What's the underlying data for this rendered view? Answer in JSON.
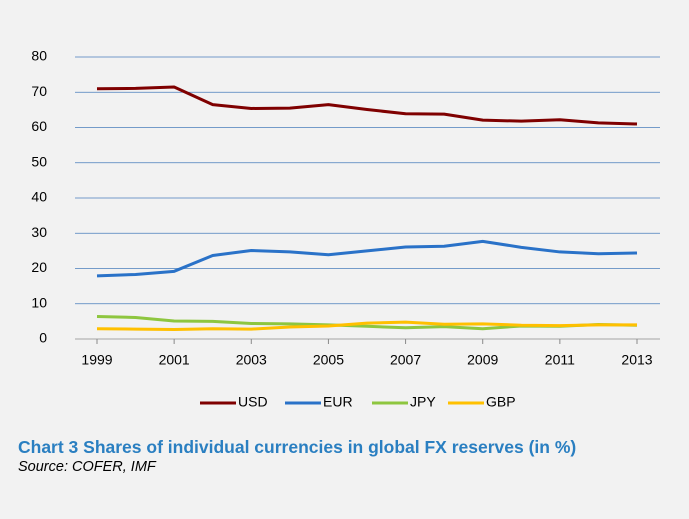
{
  "chart_data": {
    "type": "line",
    "title": "Chart 3 Shares of individual currencies in global  FX reserves (in %)",
    "source": "Source: COFER, IMF",
    "x": [
      1999,
      2000,
      2001,
      2002,
      2003,
      2004,
      2005,
      2006,
      2007,
      2008,
      2009,
      2010,
      2011,
      2012,
      2013
    ],
    "xlim": [
      1999,
      2013
    ],
    "xticks": [
      1999,
      2001,
      2003,
      2005,
      2007,
      2009,
      2011,
      2013
    ],
    "ylim": [
      0,
      80
    ],
    "yticks": [
      0,
      10,
      20,
      30,
      40,
      50,
      60,
      70,
      80
    ],
    "grid": true,
    "legend": "bottom",
    "series": [
      {
        "name": "USD",
        "color": "#7f0000",
        "values": [
          71.0,
          71.1,
          71.5,
          66.5,
          65.4,
          65.5,
          66.5,
          65.1,
          63.9,
          63.8,
          62.1,
          61.8,
          62.2,
          61.3,
          61.0
        ]
      },
      {
        "name": "EUR",
        "color": "#2a72c8",
        "values": [
          17.9,
          18.3,
          19.2,
          23.7,
          25.1,
          24.7,
          23.9,
          25.0,
          26.1,
          26.3,
          27.7,
          26.0,
          24.7,
          24.2,
          24.4
        ]
      },
      {
        "name": "JPY",
        "color": "#8ec63f",
        "values": [
          6.4,
          6.1,
          5.1,
          5.0,
          4.4,
          4.3,
          4.0,
          3.6,
          3.2,
          3.5,
          2.9,
          3.7,
          3.6,
          4.1,
          3.9
        ]
      },
      {
        "name": "GBP",
        "color": "#ffc000",
        "values": [
          2.9,
          2.8,
          2.7,
          2.9,
          2.8,
          3.4,
          3.7,
          4.5,
          4.8,
          4.2,
          4.3,
          3.9,
          3.8,
          4.0,
          4.0
        ]
      }
    ]
  }
}
